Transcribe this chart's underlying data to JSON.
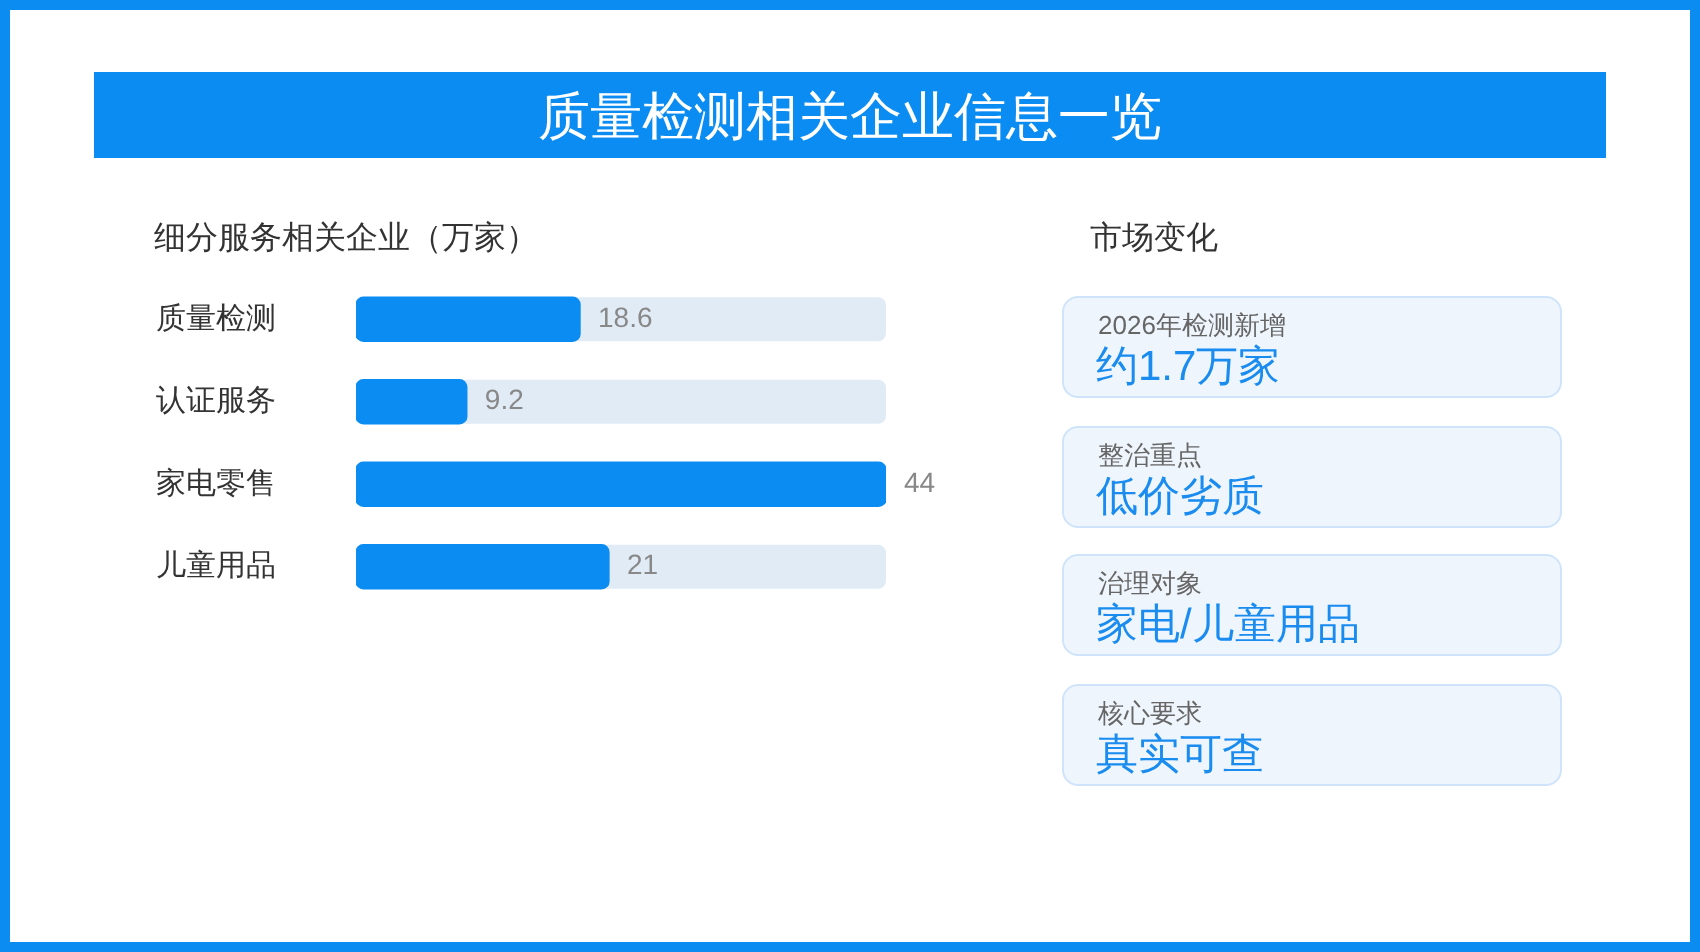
{
  "chart_data": [
    {
      "type": "bar",
      "title": "质量检测相关企业信息一览",
      "subtitle": "细分服务相关企业（万家）",
      "orientation": "horizontal",
      "categories": [
        "质量检测",
        "认证服务",
        "家电零售",
        "儿童用品"
      ],
      "values": [
        18.6,
        9.2,
        44,
        21
      ],
      "color": "#0b8cf3",
      "xlim": [
        0,
        44
      ],
      "data_labels": true,
      "tick_labels": "y"
    },
    {
      "type": "other",
      "title": "市场变化",
      "annotations": [
        "2026年检测新增",
        "约1.7万家",
        "整治重点",
        "低价劣质",
        "治理对象",
        "家电/儿童用品",
        "核心要求",
        "真实可查"
      ]
    }
  ]
}
